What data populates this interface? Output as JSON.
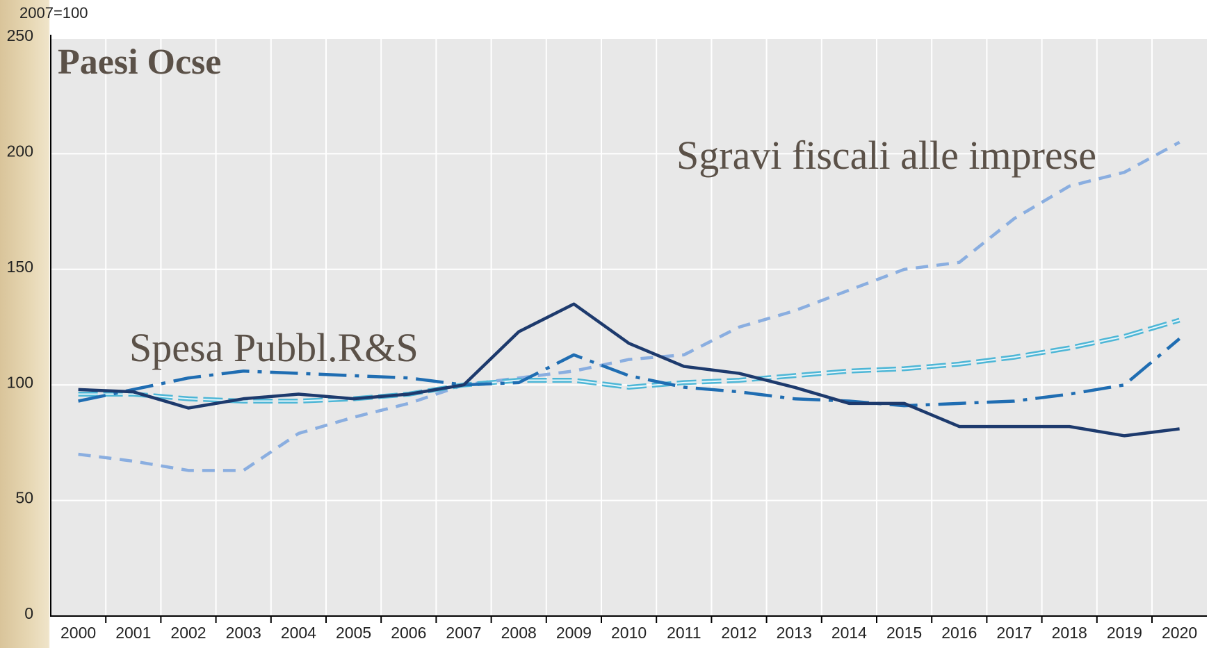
{
  "chart_data": {
    "type": "line",
    "title": "Paesi Ocse",
    "y_axis_label": "2007=100",
    "annotations": [
      "Sgravi fiscali alle imprese",
      "Spesa Pubbl.R&S"
    ],
    "categories": [
      "2000",
      "2001",
      "2002",
      "2003",
      "2004",
      "2005",
      "2006",
      "2007",
      "2008",
      "2009",
      "2010",
      "2011",
      "2012",
      "2013",
      "2014",
      "2015",
      "2016",
      "2017",
      "2018",
      "2019",
      "2020"
    ],
    "series": [
      {
        "color": "#1d3a6d",
        "dash": "solid",
        "values": [
          98,
          97,
          90,
          94,
          96,
          94,
          96,
          100,
          123,
          135,
          118,
          108,
          105,
          99,
          92,
          92,
          82,
          82,
          82,
          78,
          81
        ]
      },
      {
        "color": "#1f6db2",
        "dash": "dashdot",
        "values": [
          93,
          98,
          103,
          106,
          105,
          104,
          103,
          100,
          101,
          113,
          104,
          99,
          97,
          94,
          93,
          91,
          92,
          93,
          96,
          100,
          120
        ]
      },
      {
        "color": "#8aaee0",
        "dash": "dashed",
        "values": [
          70,
          67,
          63,
          63,
          79,
          86,
          92,
          100,
          103,
          106,
          111,
          113,
          125,
          132,
          141,
          150,
          153,
          172,
          186,
          192,
          205
        ]
      },
      {
        "color": "#4db6d6",
        "dash": "double",
        "values": [
          96,
          96,
          94,
          93,
          93,
          94,
          96,
          100,
          102,
          102,
          99,
          101,
          102,
          104,
          106,
          107,
          109,
          112,
          116,
          121,
          128
        ]
      }
    ],
    "ylim": [
      0,
      250
    ],
    "yticks": [
      0,
      50,
      100,
      150,
      200,
      250
    ],
    "grid": true
  }
}
